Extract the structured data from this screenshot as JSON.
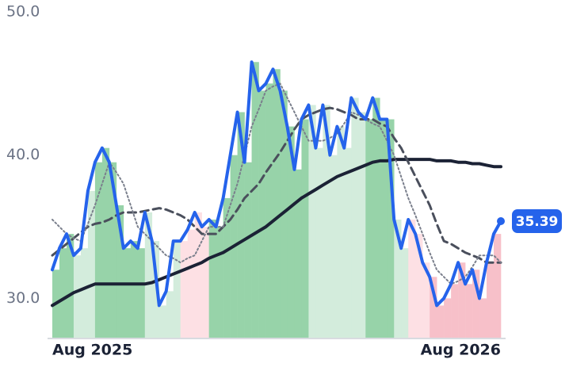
{
  "chart_data": {
    "type": "line",
    "categories": [
      "Aug 2025",
      null,
      null,
      null,
      null,
      null,
      null,
      null,
      null,
      null,
      null,
      null,
      null,
      null,
      null,
      null,
      null,
      null,
      null,
      null,
      null,
      null,
      null,
      null,
      null,
      null,
      null,
      null,
      null,
      null,
      null,
      null,
      null,
      null,
      null,
      null,
      null,
      null,
      null,
      null,
      null,
      null,
      null,
      null,
      null,
      null,
      null,
      null,
      null,
      null,
      null,
      null,
      null,
      null,
      null,
      null,
      null,
      null,
      null,
      null,
      null,
      null,
      null,
      "Aug 2026"
    ],
    "series": [
      {
        "color": "#2563eb",
        "line_style": "solid",
        "width": 4,
        "last_label": true,
        "values": [
          32.0,
          33.5,
          34.5,
          33.0,
          33.5,
          37.5,
          39.5,
          40.5,
          39.5,
          36.5,
          33.5,
          34.0,
          33.5,
          36.0,
          34.0,
          29.5,
          30.5,
          34.0,
          34.0,
          34.8,
          36.0,
          35.0,
          35.5,
          35.0,
          37.0,
          40.0,
          43.0,
          39.5,
          46.5,
          44.5,
          45.0,
          46.0,
          44.5,
          42.0,
          39.0,
          42.5,
          43.5,
          40.5,
          43.5,
          40.0,
          42.0,
          40.5,
          44.0,
          43.0,
          42.5,
          44.0,
          42.5,
          42.5,
          35.5,
          33.5,
          35.5,
          34.5,
          32.5,
          31.5,
          29.5,
          30.0,
          31.0,
          32.5,
          31.0,
          32.0,
          30.0,
          32.5,
          34.5,
          35.39
        ]
      },
      {
        "color": "#7a7f8c",
        "line_style": "dotted",
        "width": 2,
        "values": [
          35.5,
          35.0,
          34.5,
          34.2,
          34.0,
          35.2,
          36.5,
          38.0,
          39.5,
          38.8,
          38.0,
          36.5,
          35.0,
          34.5,
          34.0,
          33.5,
          33.0,
          32.8,
          32.5,
          32.8,
          33.0,
          34.0,
          35.0,
          35.0,
          35.0,
          36.5,
          38.0,
          40.0,
          42.0,
          43.2,
          44.5,
          44.8,
          45.0,
          44.0,
          43.0,
          42.0,
          41.0,
          41.0,
          41.0,
          41.2,
          41.5,
          42.2,
          43.0,
          42.8,
          42.5,
          42.2,
          42.0,
          41.0,
          40.0,
          38.5,
          37.0,
          35.8,
          34.5,
          33.2,
          32.0,
          31.5,
          31.0,
          31.2,
          31.5,
          32.2,
          33.0,
          33.0,
          33.0,
          32.5
        ]
      },
      {
        "color": "#4a4f5c",
        "line_style": "dashed",
        "width": 3,
        "values": [
          33.0,
          33.4,
          33.8,
          34.2,
          34.6,
          35.0,
          35.2,
          35.3,
          35.5,
          35.8,
          36.0,
          36.0,
          36.0,
          36.1,
          36.2,
          36.3,
          36.2,
          36.0,
          35.8,
          35.5,
          35.0,
          34.5,
          34.5,
          34.5,
          35.0,
          35.5,
          36.2,
          37.0,
          37.5,
          38.0,
          38.8,
          39.5,
          40.2,
          41.0,
          41.8,
          42.5,
          42.8,
          43.0,
          43.2,
          43.3,
          43.2,
          43.0,
          42.8,
          42.5,
          42.5,
          42.5,
          42.2,
          42.0,
          41.2,
          40.5,
          39.5,
          38.5,
          37.5,
          36.5,
          35.2,
          34.0,
          33.8,
          33.5,
          33.2,
          33.0,
          32.8,
          32.5,
          32.5,
          32.5
        ]
      },
      {
        "color": "#1b2235",
        "line_style": "solid",
        "width": 4,
        "values": [
          29.5,
          29.8,
          30.1,
          30.4,
          30.6,
          30.8,
          31.0,
          31.0,
          31.0,
          31.0,
          31.0,
          31.0,
          31.0,
          31.0,
          31.1,
          31.3,
          31.5,
          31.7,
          31.9,
          32.1,
          32.3,
          32.5,
          32.8,
          33.0,
          33.2,
          33.5,
          33.8,
          34.1,
          34.4,
          34.7,
          35.0,
          35.4,
          35.8,
          36.2,
          36.6,
          37.0,
          37.3,
          37.6,
          37.9,
          38.2,
          38.5,
          38.7,
          38.9,
          39.1,
          39.3,
          39.5,
          39.6,
          39.6,
          39.7,
          39.7,
          39.7,
          39.7,
          39.7,
          39.7,
          39.6,
          39.6,
          39.6,
          39.5,
          39.5,
          39.4,
          39.4,
          39.3,
          39.2,
          39.2
        ]
      }
    ],
    "area_colors": [
      "#97d3a9",
      "#97d3a9",
      "#97d3a9",
      "#d3ecdc",
      "#d3ecdc",
      "#d3ecdc",
      "#97d3a9",
      "#97d3a9",
      "#97d3a9",
      "#97d3a9",
      "#97d3a9",
      "#97d3a9",
      "#97d3a9",
      "#d3ecdc",
      "#d3ecdc",
      "#d3ecdc",
      "#d3ecdc",
      "#d3ecdc",
      "#fde0e4",
      "#fde0e4",
      "#fde0e4",
      "#fde0e4",
      "#97d3a9",
      "#97d3a9",
      "#97d3a9",
      "#97d3a9",
      "#97d3a9",
      "#97d3a9",
      "#97d3a9",
      "#97d3a9",
      "#97d3a9",
      "#97d3a9",
      "#97d3a9",
      "#97d3a9",
      "#97d3a9",
      "#97d3a9",
      "#d3ecdc",
      "#d3ecdc",
      "#d3ecdc",
      "#d3ecdc",
      "#d3ecdc",
      "#d3ecdc",
      "#d3ecdc",
      "#d3ecdc",
      "#97d3a9",
      "#97d3a9",
      "#97d3a9",
      "#97d3a9",
      "#d3ecdc",
      "#d3ecdc",
      "#fde0e4",
      "#fde0e4",
      "#fde0e4",
      "#f7c0c9",
      "#f7c0c9",
      "#f7c0c9",
      "#f7c0c9",
      "#f7c0c9",
      "#f7c0c9",
      "#f7c0c9",
      "#f7c0c9",
      "#f7c0c9",
      "#f7c0c9",
      "#f7c0c9"
    ],
    "ylim": [
      27.2,
      50
    ],
    "yticks": [
      {
        "value": 30,
        "label": "30.0"
      },
      {
        "value": 40,
        "label": "40.0"
      },
      {
        "value": 50,
        "label": "50.0"
      }
    ],
    "grid": false
  }
}
